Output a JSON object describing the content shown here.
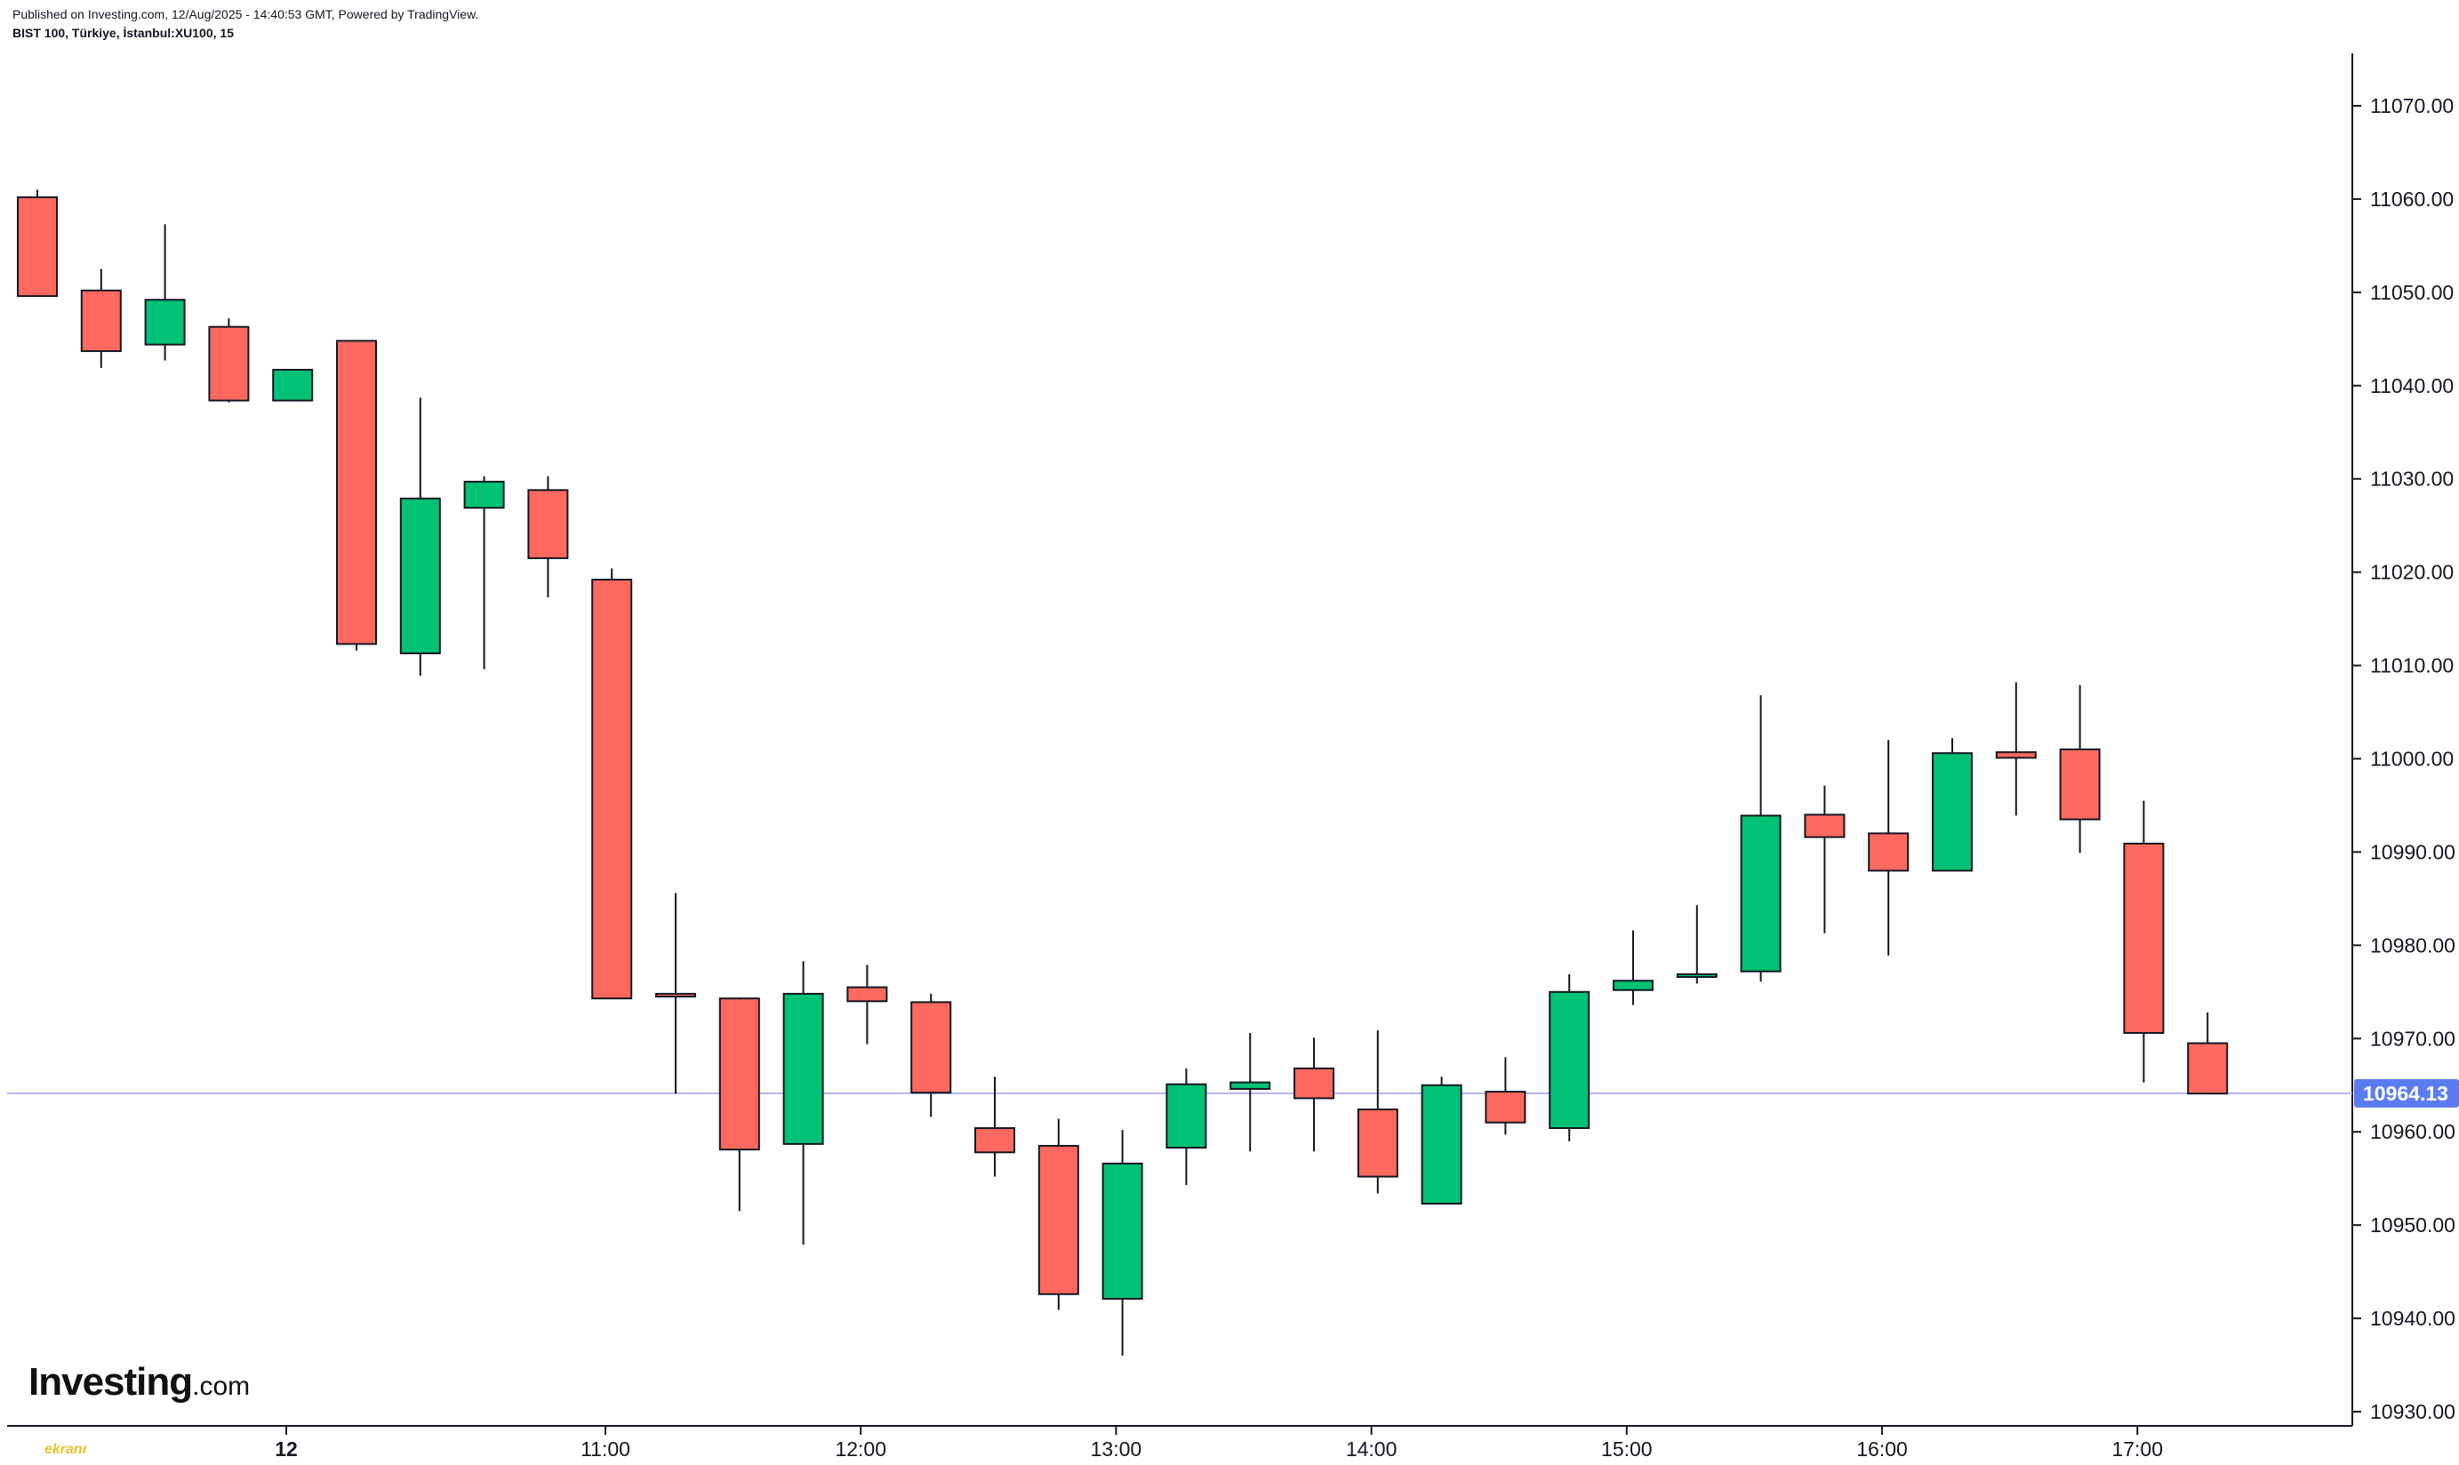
{
  "header": {
    "published": "Published on Investing.com, 12/Aug/2025 - 14:40:53 GMT, Powered by TradingView.",
    "symbol": "BIST 100, Türkiye, İstanbul:XU100, 15"
  },
  "logo": {
    "main": "Investing",
    "suffix": ".com"
  },
  "watermark": "ekranı",
  "colors": {
    "up": "#00c176",
    "down": "#ff6960",
    "outline": "#131722",
    "price_line": "#b2b5e8",
    "price_tag": "#5b7cf0",
    "axis": "#131722"
  },
  "chart_data": {
    "type": "candlestick",
    "title": "BIST 100, Türkiye, İstanbul:XU100, 15",
    "ylim": [
      10928,
      11076
    ],
    "y_ticks": [
      "10930.00",
      "10940.00",
      "10950.00",
      "10960.00",
      "10970.00",
      "10980.00",
      "10990.00",
      "11000.00",
      "11010.00",
      "11020.00",
      "11030.00",
      "11040.00",
      "11050.00",
      "11060.00",
      "11070.00"
    ],
    "x_labels": [
      {
        "label": "12",
        "index": 3.9,
        "bold": true
      },
      {
        "label": "11:00",
        "index": 8.9,
        "bold": false
      },
      {
        "label": "12:00",
        "index": 12.9,
        "bold": false
      },
      {
        "label": "13:00",
        "index": 16.9,
        "bold": false
      },
      {
        "label": "14:00",
        "index": 20.9,
        "bold": false
      },
      {
        "label": "15:00",
        "index": 24.9,
        "bold": false
      },
      {
        "label": "16:00",
        "index": 28.9,
        "bold": false
      },
      {
        "label": "17:00",
        "index": 32.9,
        "bold": false
      }
    ],
    "last_price": 10964.13,
    "last_price_label": "10964.13",
    "candles": [
      {
        "o": 11060.2,
        "h": 11061.0,
        "l": 11049.6,
        "c": 11049.6
      },
      {
        "o": 11050.2,
        "h": 11052.5,
        "l": 11041.9,
        "c": 11043.7
      },
      {
        "o": 11044.4,
        "h": 11057.3,
        "l": 11042.7,
        "c": 11049.2
      },
      {
        "o": 11046.3,
        "h": 11047.2,
        "l": 11038.2,
        "c": 11038.4
      },
      {
        "o": 11038.4,
        "h": 11041.7,
        "l": 11038.3,
        "c": 11041.7
      },
      {
        "o": 11044.8,
        "h": 11044.8,
        "l": 11011.6,
        "c": 11012.3
      },
      {
        "o": 11011.3,
        "h": 11038.7,
        "l": 11008.9,
        "c": 11027.9
      },
      {
        "o": 11026.9,
        "h": 11030.3,
        "l": 11009.6,
        "c": 11029.7
      },
      {
        "o": 11028.8,
        "h": 11030.3,
        "l": 11017.3,
        "c": 11021.5
      },
      {
        "o": 11019.2,
        "h": 11020.4,
        "l": 10974.3,
        "c": 10974.3
      },
      {
        "o": 10974.8,
        "h": 10985.6,
        "l": 10964.1,
        "c": 10974.5
      },
      {
        "o": 10974.3,
        "h": 10974.4,
        "l": 10951.5,
        "c": 10958.1
      },
      {
        "o": 10958.7,
        "h": 10978.3,
        "l": 10947.9,
        "c": 10974.8
      },
      {
        "o": 10975.5,
        "h": 10977.9,
        "l": 10969.4,
        "c": 10974.0
      },
      {
        "o": 10973.9,
        "h": 10974.8,
        "l": 10961.6,
        "c": 10964.2
      },
      {
        "o": 10960.4,
        "h": 10965.9,
        "l": 10955.2,
        "c": 10957.8
      },
      {
        "o": 10958.5,
        "h": 10961.4,
        "l": 10940.9,
        "c": 10942.6
      },
      {
        "o": 10942.1,
        "h": 10960.2,
        "l": 10936.0,
        "c": 10956.6
      },
      {
        "o": 10958.3,
        "h": 10966.8,
        "l": 10954.3,
        "c": 10965.1
      },
      {
        "o": 10964.6,
        "h": 10970.6,
        "l": 10957.9,
        "c": 10965.3
      },
      {
        "o": 10966.8,
        "h": 10970.1,
        "l": 10957.9,
        "c": 10963.6
      },
      {
        "o": 10962.4,
        "h": 10970.9,
        "l": 10953.4,
        "c": 10955.2
      },
      {
        "o": 10952.3,
        "h": 10965.9,
        "l": 10952.3,
        "c": 10965.0
      },
      {
        "o": 10964.3,
        "h": 10968.0,
        "l": 10959.7,
        "c": 10961.0
      },
      {
        "o": 10960.4,
        "h": 10976.9,
        "l": 10959.0,
        "c": 10975.0
      },
      {
        "o": 10975.2,
        "h": 10981.6,
        "l": 10973.6,
        "c": 10976.2
      },
      {
        "o": 10976.6,
        "h": 10984.3,
        "l": 10975.9,
        "c": 10976.9
      },
      {
        "o": 10977.2,
        "h": 11006.8,
        "l": 10976.1,
        "c": 10993.9
      },
      {
        "o": 10994.0,
        "h": 10997.1,
        "l": 10981.3,
        "c": 10991.6
      },
      {
        "o": 10992.0,
        "h": 11002.0,
        "l": 10978.9,
        "c": 10988.0
      },
      {
        "o": 10988.0,
        "h": 11002.2,
        "l": 10988.0,
        "c": 11000.6
      },
      {
        "o": 11000.7,
        "h": 11008.2,
        "l": 10993.9,
        "c": 11000.1
      },
      {
        "o": 11001.0,
        "h": 11007.9,
        "l": 10989.9,
        "c": 10993.5
      },
      {
        "o": 10990.9,
        "h": 10995.5,
        "l": 10965.3,
        "c": 10970.6
      },
      {
        "o": 10969.5,
        "h": 10972.8,
        "l": 10964.1,
        "c": 10964.1
      }
    ]
  }
}
